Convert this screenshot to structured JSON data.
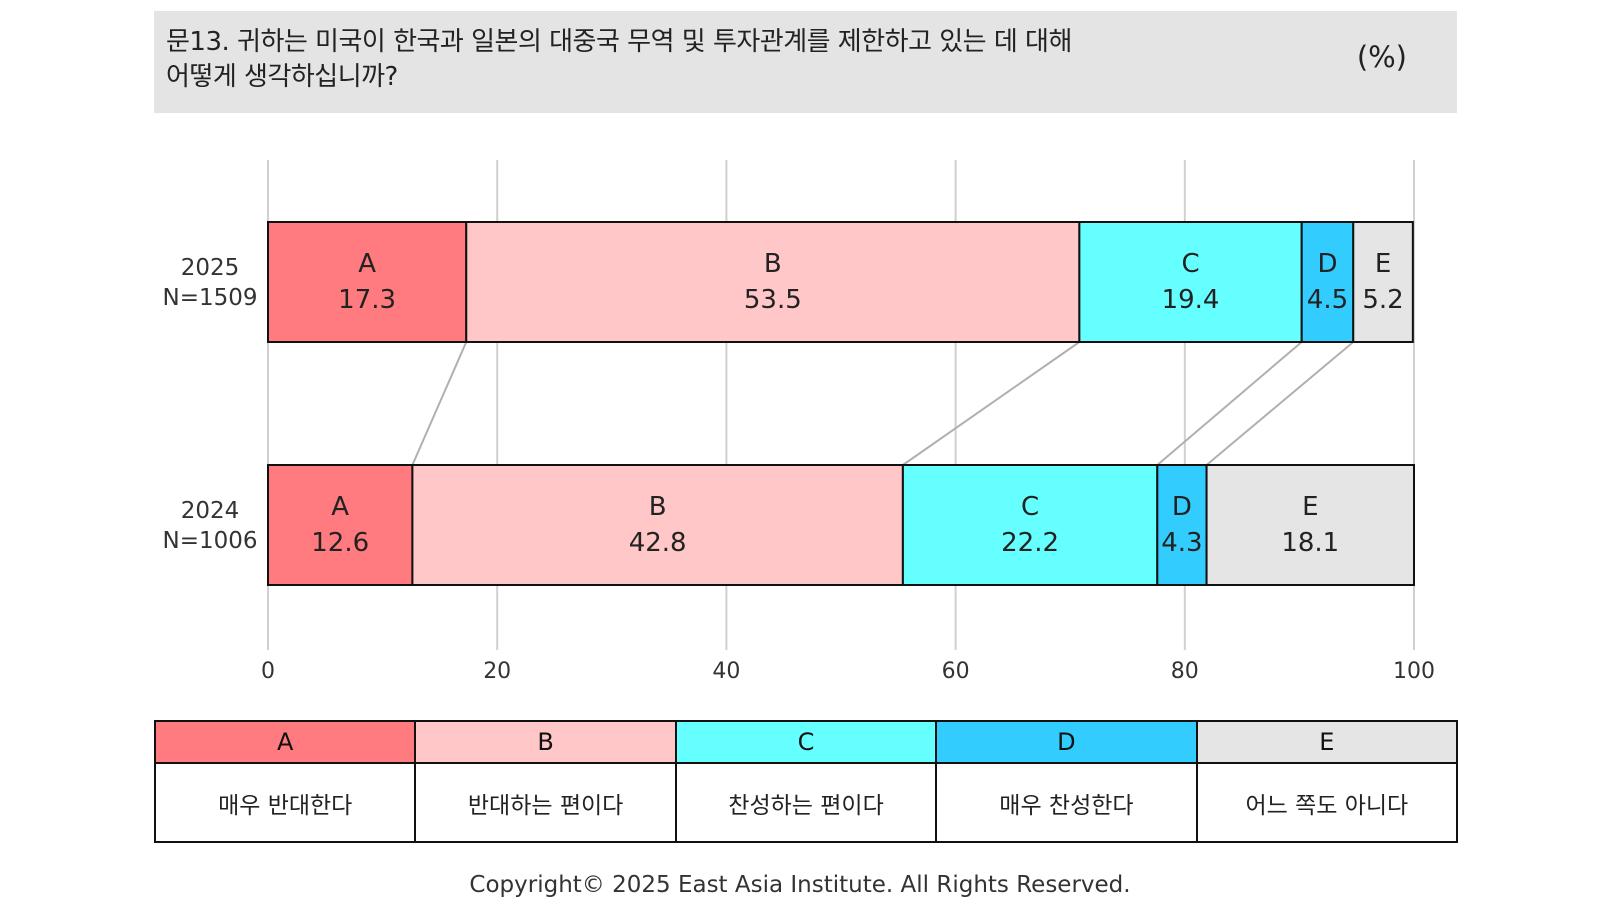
{
  "title": {
    "line1": "문13. 귀하는 미국이 한국과 일본의 대중국 무역 및 투자관계를 제한하고 있는 데 대해",
    "line2": "어떻게 생각하십니까?",
    "unit": "(%)"
  },
  "colors": {
    "A": "#ff7b7f",
    "B": "#ffc7c8",
    "C": "#66ffff",
    "D": "#33ccff",
    "E": "#e6e5e5",
    "grid": "#d0d0d0",
    "connector": "#b0b0b0"
  },
  "chart_data": {
    "type": "bar",
    "orientation": "horizontal",
    "stacked": true,
    "categories": [
      "2025",
      "2024"
    ],
    "category_sublabels": [
      "N=1509",
      "N=1006"
    ],
    "segment_keys": [
      "A",
      "B",
      "C",
      "D",
      "E"
    ],
    "series": [
      {
        "name": "A",
        "values": [
          17.3,
          12.6
        ]
      },
      {
        "name": "B",
        "values": [
          53.5,
          42.8
        ]
      },
      {
        "name": "C",
        "values": [
          19.4,
          22.2
        ]
      },
      {
        "name": "D",
        "values": [
          4.5,
          4.3
        ]
      },
      {
        "name": "E",
        "values": [
          5.2,
          18.1
        ]
      }
    ],
    "xlim": [
      0,
      100
    ],
    "x_ticks": [
      "0",
      "20",
      "40",
      "60",
      "80",
      "100"
    ],
    "grid": true
  },
  "legend": [
    {
      "key": "A",
      "label": "매우 반대한다"
    },
    {
      "key": "B",
      "label": "반대하는 편이다"
    },
    {
      "key": "C",
      "label": "찬성하는 편이다"
    },
    {
      "key": "D",
      "label": "매우 찬성한다"
    },
    {
      "key": "E",
      "label": "어느 쪽도 아니다"
    }
  ],
  "copyright": "Copyright© 2025 East Asia Institute. All Rights Reserved."
}
